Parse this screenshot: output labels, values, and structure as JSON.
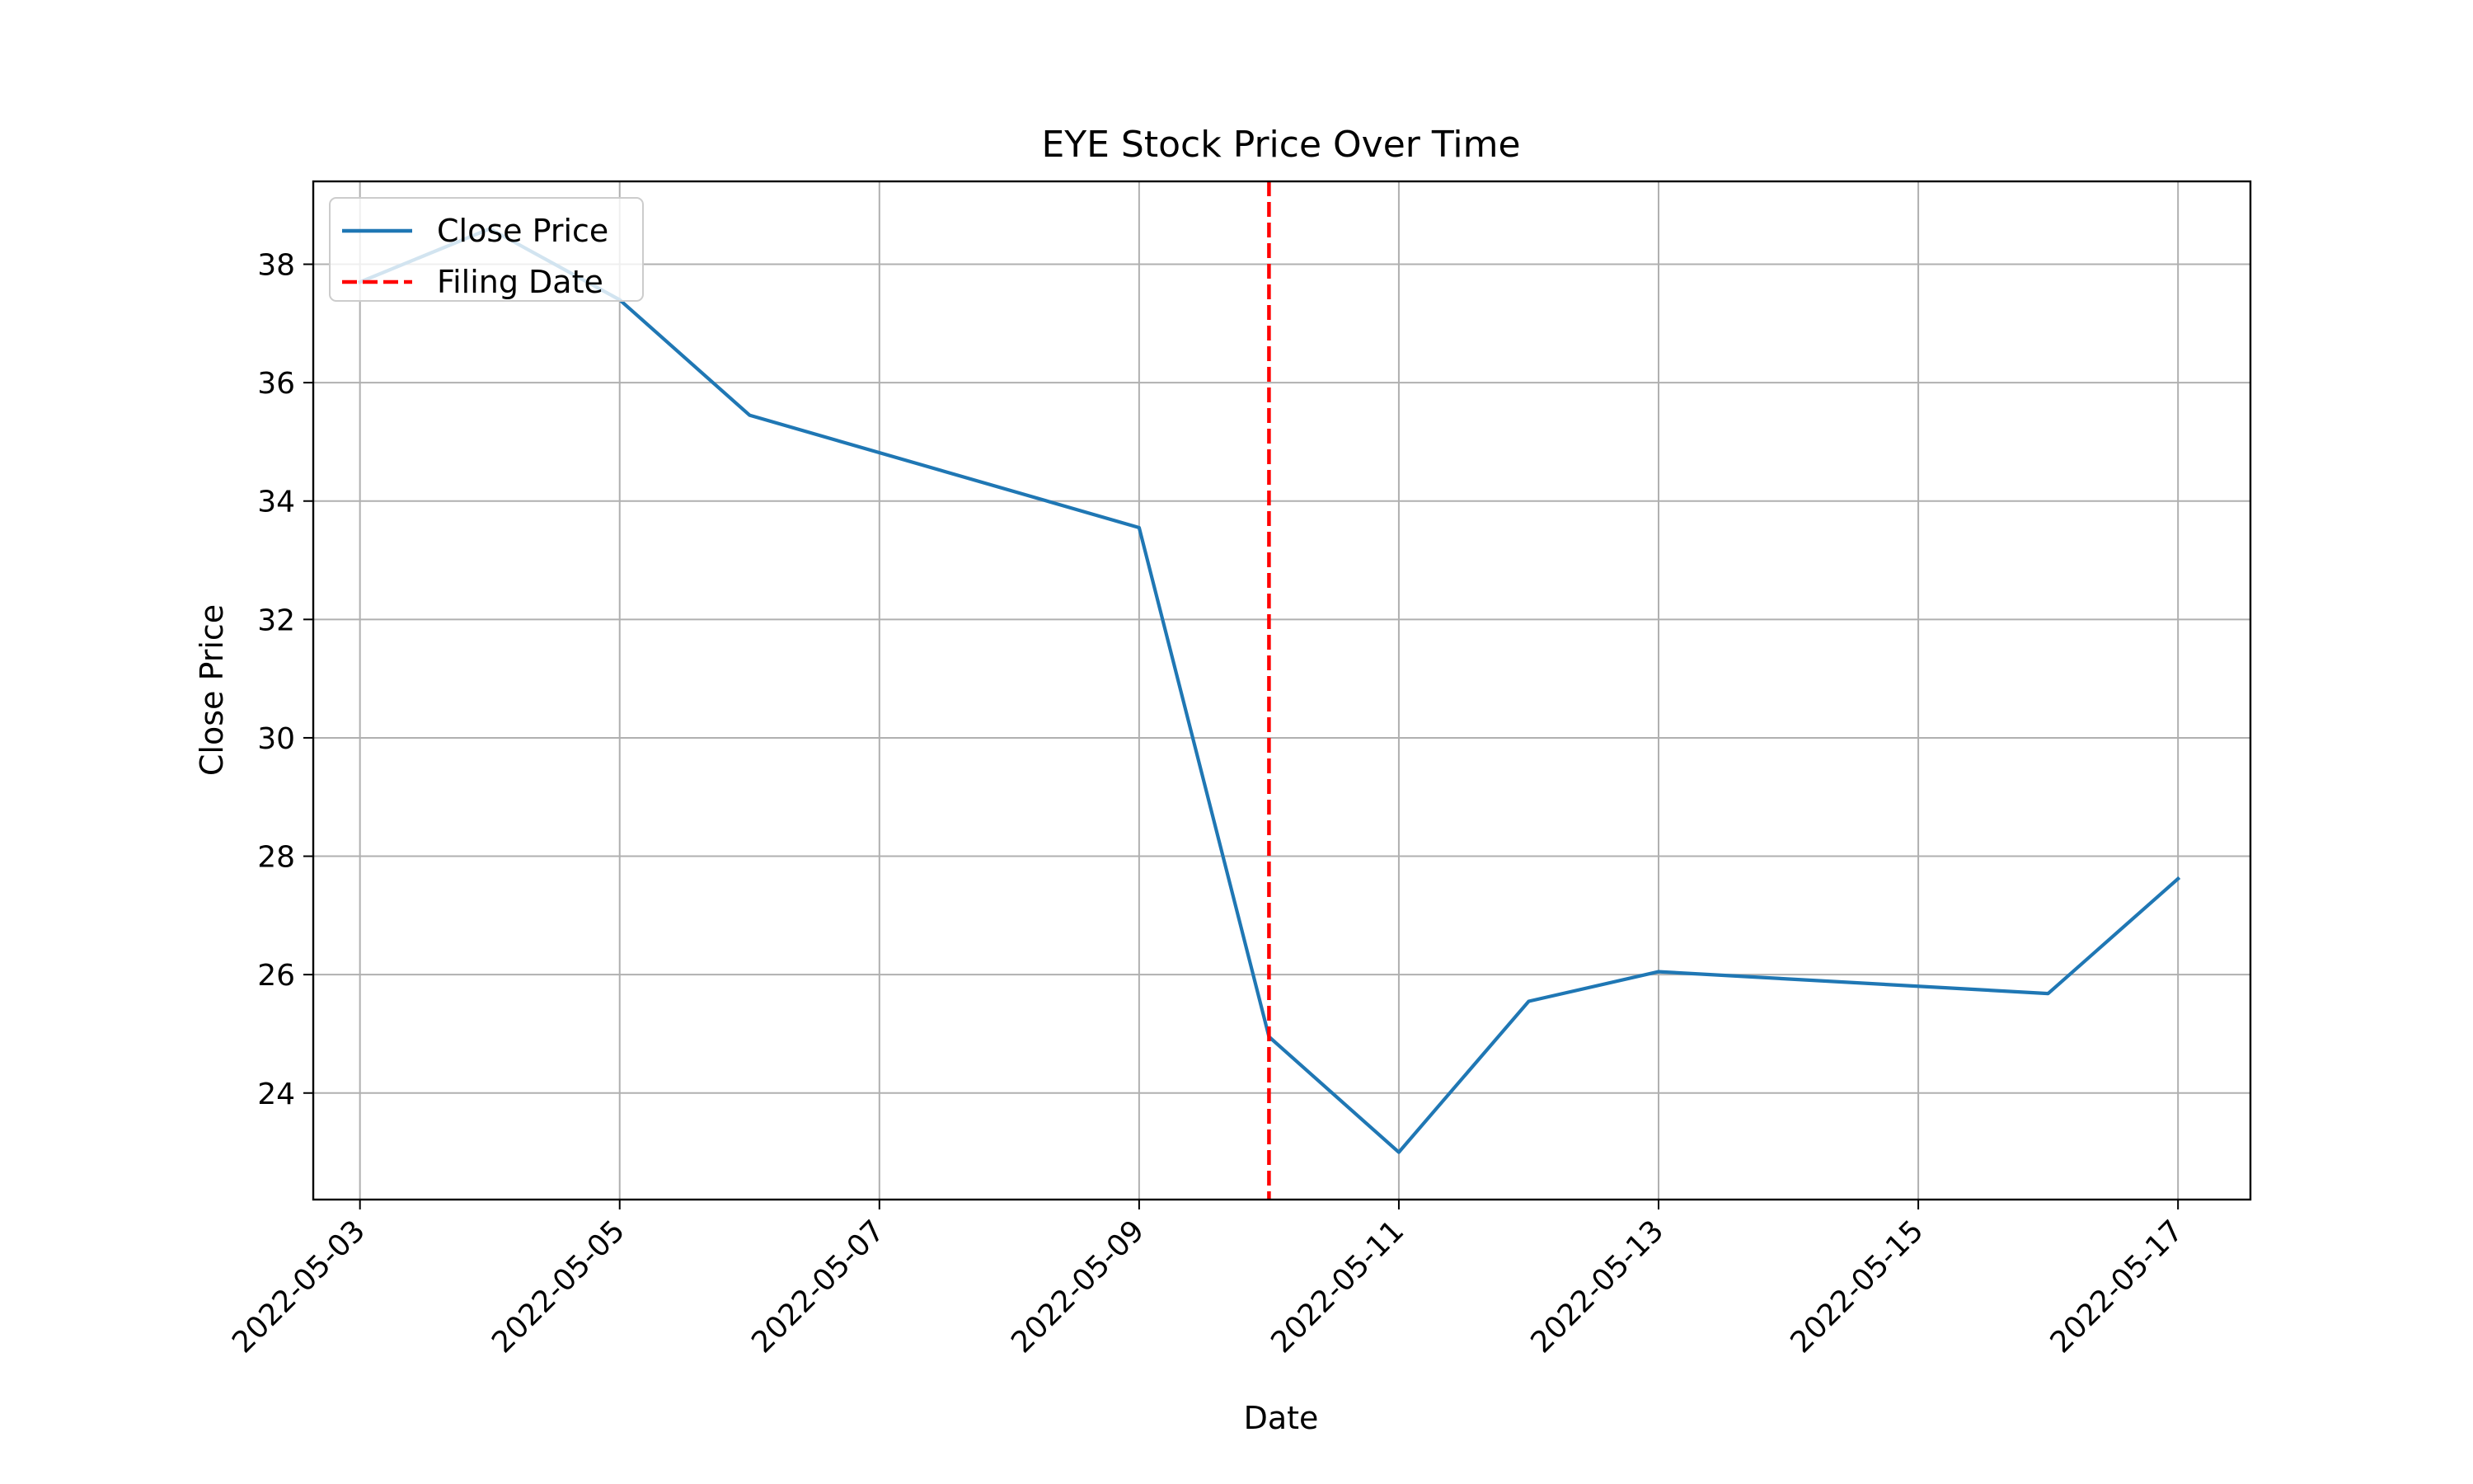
{
  "chart_data": {
    "type": "line",
    "title": "EYE Stock Price Over Time",
    "xlabel": "Date",
    "ylabel": "Close Price",
    "xlim": [
      "2022-05-02T15:22",
      "2022-05-17T13:23"
    ],
    "ylim": [
      22.2,
      39.4
    ],
    "xticks": [
      "2022-05-03",
      "2022-05-05",
      "2022-05-07",
      "2022-05-09",
      "2022-05-11",
      "2022-05-13",
      "2022-05-15",
      "2022-05-17"
    ],
    "yticks": [
      24,
      26,
      28,
      30,
      32,
      34,
      36,
      38
    ],
    "grid": true,
    "legend_position": "top-left",
    "series": [
      {
        "name": "Close Price",
        "color": "#1f77b4",
        "style": "solid",
        "x": [
          "2022-05-03",
          "2022-05-04",
          "2022-05-05",
          "2022-05-06",
          "2022-05-09",
          "2022-05-10",
          "2022-05-11",
          "2022-05-12",
          "2022-05-13",
          "2022-05-16",
          "2022-05-17"
        ],
        "y": [
          37.7,
          38.6,
          37.4,
          35.45,
          33.55,
          24.95,
          23.0,
          25.55,
          26.05,
          25.68,
          27.62
        ]
      }
    ],
    "reference_lines": [
      {
        "name": "Filing Date",
        "orientation": "vertical",
        "x": "2022-05-10",
        "color": "#ff0000",
        "style": "dashed"
      }
    ]
  }
}
